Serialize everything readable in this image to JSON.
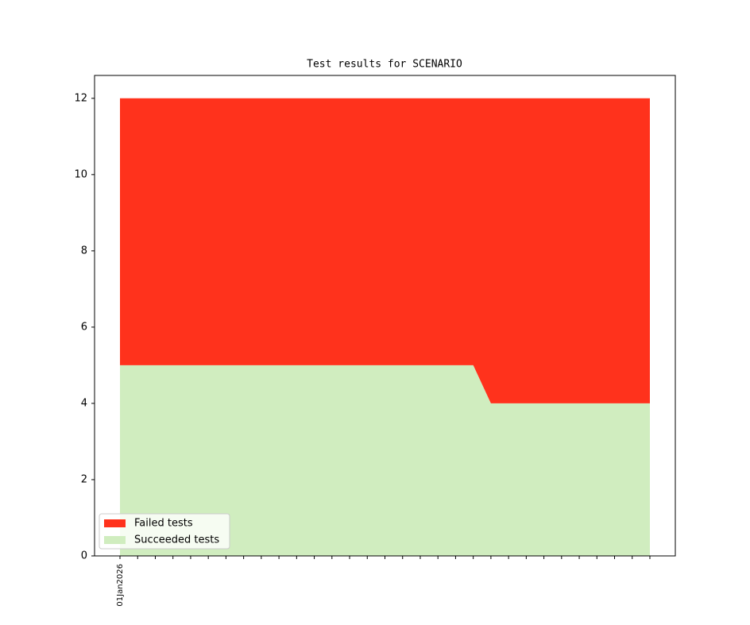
{
  "chart_data": {
    "type": "stacked-area",
    "title": "Test results for SCENARIO",
    "categories": [
      "01Jan2026",
      null,
      null,
      null,
      null,
      null,
      null,
      null,
      null,
      null,
      null,
      null,
      null,
      null,
      null,
      null,
      null,
      null,
      null,
      null,
      null,
      null,
      null,
      null,
      null,
      null,
      null,
      null,
      null,
      null,
      null
    ],
    "series": [
      {
        "name": "Failed tests",
        "color": "#ff321c",
        "values": [
          7,
          7,
          7,
          7,
          7,
          7,
          7,
          7,
          7,
          7,
          7,
          7,
          7,
          7,
          7,
          7,
          7,
          7,
          7,
          7,
          7,
          8,
          8,
          8,
          8,
          8,
          8,
          8,
          8,
          8,
          8
        ]
      },
      {
        "name": "Succeeded tests",
        "color": "#d0edbf",
        "values": [
          5,
          5,
          5,
          5,
          5,
          5,
          5,
          5,
          5,
          5,
          5,
          5,
          5,
          5,
          5,
          5,
          5,
          5,
          5,
          5,
          5,
          4,
          4,
          4,
          4,
          4,
          4,
          4,
          4,
          4,
          4
        ]
      }
    ],
    "ylim": [
      0,
      12.6
    ],
    "yticks": [
      0,
      2,
      4,
      6,
      8,
      10,
      12
    ],
    "legend": "lower left"
  }
}
